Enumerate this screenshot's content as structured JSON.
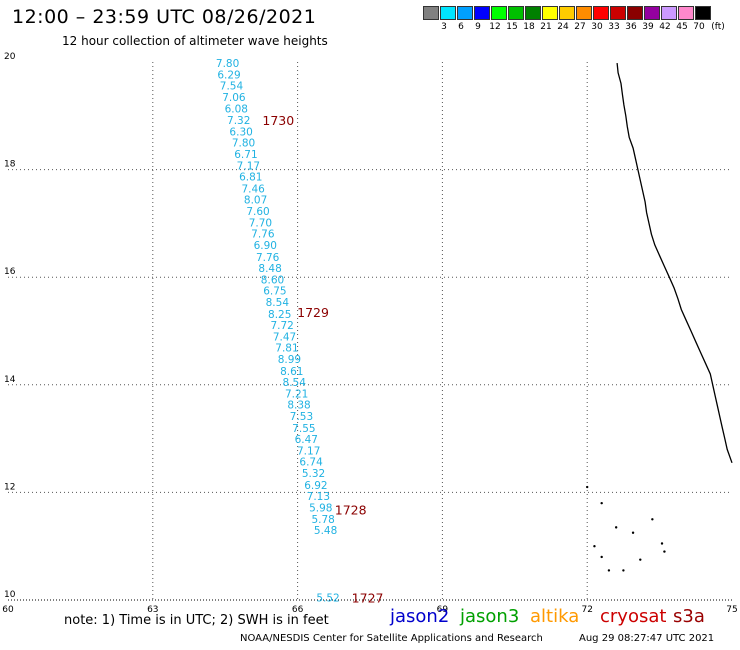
{
  "title": "12:00 – 23:59 UTC 08/26/2021",
  "subtitle": "12 hour collection of altimeter wave heights",
  "scale": {
    "unit": "(ft)",
    "colors": [
      "#808080",
      "#00e5ff",
      "#00a0ff",
      "#0000ff",
      "#00ff00",
      "#00c000",
      "#008000",
      "#ffff00",
      "#ffcc00",
      "#ff8c00",
      "#ff0000",
      "#cc0000",
      "#8b0000",
      "#9400a0",
      "#cc99ff",
      "#ff88cc",
      "#000000"
    ],
    "labels": [
      "3",
      "6",
      "9",
      "12",
      "15",
      "18",
      "21",
      "24",
      "27",
      "30",
      "33",
      "36",
      "39",
      "42",
      "45",
      "70"
    ]
  },
  "axes": {
    "lon_ticks": [
      "60",
      "63",
      "66",
      "69",
      "72",
      "75"
    ],
    "lat_ticks": [
      "10",
      "12",
      "14",
      "16",
      "18",
      "20"
    ]
  },
  "map_data": {
    "lon_range": [
      60,
      75
    ],
    "lat_range": [
      10,
      20
    ],
    "swh_color": "#21b2e2",
    "rev_color": "#8b0000",
    "swh_labels": [
      {
        "text": "7.80",
        "lon": 64.55,
        "lat": 19.98
      },
      {
        "text": "6.29",
        "lon": 64.58,
        "lat": 19.77
      },
      {
        "text": "7.54",
        "lon": 64.63,
        "lat": 19.56
      },
      {
        "text": "7.06",
        "lon": 64.68,
        "lat": 19.35
      },
      {
        "text": "6.08",
        "lon": 64.73,
        "lat": 19.14
      },
      {
        "text": "7.32",
        "lon": 64.78,
        "lat": 18.92
      },
      {
        "text": "6.30",
        "lon": 64.83,
        "lat": 18.71
      },
      {
        "text": "7.80",
        "lon": 64.88,
        "lat": 18.5
      },
      {
        "text": "6.71",
        "lon": 64.93,
        "lat": 18.29
      },
      {
        "text": "7.17",
        "lon": 64.98,
        "lat": 18.08
      },
      {
        "text": "6.81",
        "lon": 65.03,
        "lat": 17.87
      },
      {
        "text": "7.46",
        "lon": 65.08,
        "lat": 17.65
      },
      {
        "text": "8.07",
        "lon": 65.13,
        "lat": 17.44
      },
      {
        "text": "7.60",
        "lon": 65.18,
        "lat": 17.23
      },
      {
        "text": "7.70",
        "lon": 65.23,
        "lat": 17.02
      },
      {
        "text": "7.76",
        "lon": 65.28,
        "lat": 16.81
      },
      {
        "text": "6.90",
        "lon": 65.33,
        "lat": 16.6
      },
      {
        "text": "7.76",
        "lon": 65.38,
        "lat": 16.38
      },
      {
        "text": "8.48",
        "lon": 65.43,
        "lat": 16.17
      },
      {
        "text": "8.60",
        "lon": 65.48,
        "lat": 15.96
      },
      {
        "text": "6.75",
        "lon": 65.53,
        "lat": 15.75
      },
      {
        "text": "8.54",
        "lon": 65.58,
        "lat": 15.54
      },
      {
        "text": "8.25",
        "lon": 65.63,
        "lat": 15.32
      },
      {
        "text": "7.72",
        "lon": 65.68,
        "lat": 15.11
      },
      {
        "text": "7.47",
        "lon": 65.73,
        "lat": 14.9
      },
      {
        "text": "7.81",
        "lon": 65.78,
        "lat": 14.69
      },
      {
        "text": "8.99",
        "lon": 65.83,
        "lat": 14.48
      },
      {
        "text": "8.61",
        "lon": 65.88,
        "lat": 14.26
      },
      {
        "text": "8.54",
        "lon": 65.93,
        "lat": 14.05
      },
      {
        "text": "7.21",
        "lon": 65.98,
        "lat": 13.84
      },
      {
        "text": "8.38",
        "lon": 66.03,
        "lat": 13.63
      },
      {
        "text": "7.53",
        "lon": 66.08,
        "lat": 13.42
      },
      {
        "text": "7.55",
        "lon": 66.13,
        "lat": 13.2
      },
      {
        "text": "6.47",
        "lon": 66.18,
        "lat": 12.99
      },
      {
        "text": "7.17",
        "lon": 66.23,
        "lat": 12.78
      },
      {
        "text": "6.74",
        "lon": 66.28,
        "lat": 12.57
      },
      {
        "text": "5.32",
        "lon": 66.33,
        "lat": 12.36
      },
      {
        "text": "6.92",
        "lon": 66.38,
        "lat": 12.14
      },
      {
        "text": "7.13",
        "lon": 66.43,
        "lat": 11.93
      },
      {
        "text": "5.98",
        "lon": 66.48,
        "lat": 11.72
      },
      {
        "text": "5.78",
        "lon": 66.53,
        "lat": 11.51
      },
      {
        "text": "5.48",
        "lon": 66.58,
        "lat": 11.3
      },
      {
        "text": "5.52",
        "lon": 66.63,
        "lat": 10.05
      }
    ],
    "revolutions": [
      {
        "text": "1730",
        "lon": 65.6,
        "lat": 18.92
      },
      {
        "text": "1729",
        "lon": 66.32,
        "lat": 15.35
      },
      {
        "text": "1728",
        "lon": 67.1,
        "lat": 11.68
      },
      {
        "text": "1727",
        "lon": 67.45,
        "lat": 10.05
      }
    ],
    "coastline": [
      [
        72.62,
        19.98
      ],
      [
        72.64,
        19.8
      ],
      [
        72.7,
        19.6
      ],
      [
        72.73,
        19.4
      ],
      [
        72.76,
        19.2
      ],
      [
        72.8,
        19.0
      ],
      [
        72.83,
        18.8
      ],
      [
        72.87,
        18.6
      ],
      [
        72.95,
        18.4
      ],
      [
        73.0,
        18.2
      ],
      [
        73.05,
        18.0
      ],
      [
        73.1,
        17.8
      ],
      [
        73.15,
        17.6
      ],
      [
        73.2,
        17.4
      ],
      [
        73.23,
        17.2
      ],
      [
        73.28,
        17.0
      ],
      [
        73.33,
        16.8
      ],
      [
        73.4,
        16.6
      ],
      [
        73.5,
        16.4
      ],
      [
        73.6,
        16.2
      ],
      [
        73.7,
        16.0
      ],
      [
        73.8,
        15.8
      ],
      [
        73.88,
        15.6
      ],
      [
        73.95,
        15.4
      ],
      [
        74.05,
        15.2
      ],
      [
        74.15,
        15.0
      ],
      [
        74.25,
        14.8
      ],
      [
        74.35,
        14.6
      ],
      [
        74.45,
        14.4
      ],
      [
        74.55,
        14.2
      ],
      [
        74.6,
        14.0
      ],
      [
        74.65,
        13.8
      ],
      [
        74.7,
        13.6
      ],
      [
        74.75,
        13.4
      ],
      [
        74.8,
        13.2
      ],
      [
        74.85,
        13.0
      ],
      [
        74.9,
        12.8
      ],
      [
        75.0,
        12.55
      ]
    ]
  },
  "footer": {
    "note": "note:  1) Time is in UTC;  2) SWH is in feet",
    "satellites": [
      {
        "name": "jason2",
        "color": "#0000cc"
      },
      {
        "name": "jason3",
        "color": "#00a000"
      },
      {
        "name": "altika",
        "color": "#ff9900"
      },
      {
        "name": "cryosat",
        "color": "#cc0000"
      },
      {
        "name": "s3a",
        "color": "#990000"
      }
    ],
    "credit": "NOAA/NESDIS Center for Satellite Applications and Research",
    "timestamp": "Aug 29 08:27:47 UTC 2021"
  }
}
